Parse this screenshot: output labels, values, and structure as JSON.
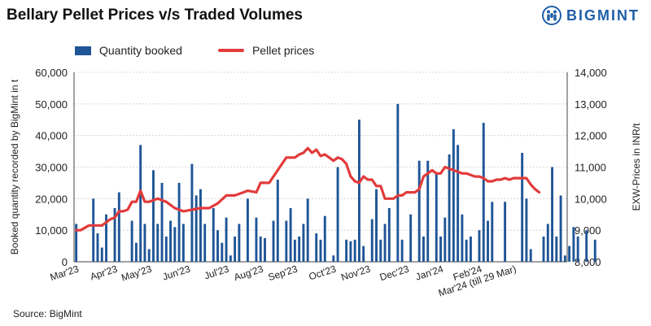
{
  "title": "Bellary Pellet Prices v/s Traded Volumes",
  "brand": {
    "name": "BIGMINT",
    "icon": "bigmint-logo-icon",
    "color": "#1f5fa8"
  },
  "source": "Source: BigMint",
  "legend": {
    "bar_label": "Quantity booked",
    "line_label": "Pellet prices"
  },
  "colors": {
    "bar": "#1f5597",
    "line": "#e23b3b",
    "grid": "#cfcfcf"
  },
  "chart_data": {
    "type": "bar",
    "combo": "bar+line (dual axis)",
    "title": "Bellary Pellet Prices v/s Traded Volumes",
    "ylabel": "Booked quantity recorded by BigMint in t",
    "ylabel_right": "EXW-Prices in INR/t",
    "ylim": [
      0,
      60000
    ],
    "ylim_right": [
      8000,
      14000
    ],
    "yticks": [
      "0",
      "10,000",
      "20,000",
      "30,000",
      "40,000",
      "50,000",
      "60,000"
    ],
    "yticks_right": [
      "8,000",
      "9,000",
      "10,000",
      "11,000",
      "12,000",
      "13,000",
      "14,000"
    ],
    "grid": true,
    "legend_position": "top-left",
    "month_labels": [
      "Mar'23",
      "Apr'23",
      "May'23",
      "Jun'23",
      "Jul'23",
      "Aug'23",
      "Sep'23",
      "Oct'23",
      "Nov'23",
      "Dec'23",
      "Jan'24",
      "Feb'24",
      "Mar'24 (till 29 Mar)"
    ],
    "month_label_positions": [
      0,
      9,
      17,
      26,
      35,
      43,
      51,
      60,
      68,
      77,
      85,
      94,
      102
    ],
    "series": [
      {
        "name": "Quantity booked",
        "kind": "bar",
        "axis": "left",
        "values": [
          12000,
          0,
          0,
          0,
          20000,
          9000,
          4500,
          15000,
          0,
          17000,
          22000,
          0,
          0,
          13000,
          6000,
          37000,
          12000,
          4000,
          29000,
          12000,
          25000,
          8000,
          13000,
          11000,
          25000,
          12000,
          0,
          31000,
          21000,
          23000,
          12000,
          0,
          17000,
          10000,
          6000,
          14000,
          2000,
          8000,
          12000,
          0,
          20000,
          0,
          14000,
          8000,
          7500,
          0,
          13000,
          26000,
          0,
          13000,
          17000,
          7000,
          8000,
          12000,
          20000,
          0,
          9000,
          7000,
          14500,
          0,
          2000,
          30000,
          0,
          7000,
          6500,
          7000,
          45000,
          5000,
          0,
          13500,
          23000,
          7000,
          12000,
          17000,
          0,
          50000,
          7000,
          0,
          15000,
          0,
          32000,
          8000,
          32000,
          0,
          28000,
          8000,
          14000,
          34000,
          42000,
          37000,
          15000,
          7000,
          8000,
          0,
          10000,
          44000,
          13000,
          19000,
          0,
          0,
          19000,
          0,
          0,
          0,
          34500,
          20000,
          4000,
          0,
          0,
          8000,
          12000,
          30000,
          8000,
          21000,
          2000,
          5000,
          11000,
          8000,
          0,
          10000,
          0,
          7000
        ],
        "total_slots": 115
      },
      {
        "name": "Pellet prices",
        "kind": "line",
        "axis": "right",
        "points": [
          [
            0,
            9000
          ],
          [
            1,
            9000
          ],
          [
            3,
            9150
          ],
          [
            6,
            9150
          ],
          [
            8,
            9350
          ],
          [
            9,
            9400
          ],
          [
            10,
            9600
          ],
          [
            11,
            9600
          ],
          [
            12,
            9650
          ],
          [
            13,
            9900
          ],
          [
            14,
            9900
          ],
          [
            15,
            10250
          ],
          [
            16,
            9900
          ],
          [
            17,
            9900
          ],
          [
            19,
            10000
          ],
          [
            21,
            9900
          ],
          [
            23,
            9700
          ],
          [
            25,
            9600
          ],
          [
            27,
            9650
          ],
          [
            29,
            9700
          ],
          [
            31,
            9700
          ],
          [
            33,
            9850
          ],
          [
            35,
            10100
          ],
          [
            37,
            10100
          ],
          [
            39,
            10200
          ],
          [
            40,
            10250
          ],
          [
            42,
            10200
          ],
          [
            43,
            10500
          ],
          [
            45,
            10500
          ],
          [
            47,
            10900
          ],
          [
            49,
            11300
          ],
          [
            51,
            11300
          ],
          [
            52,
            11400
          ],
          [
            53,
            11450
          ],
          [
            54,
            11600
          ],
          [
            55,
            11450
          ],
          [
            56,
            11550
          ],
          [
            57,
            11350
          ],
          [
            58,
            11400
          ],
          [
            59,
            11300
          ],
          [
            60,
            11200
          ],
          [
            61,
            11300
          ],
          [
            62,
            11250
          ],
          [
            63,
            11100
          ],
          [
            64,
            10700
          ],
          [
            65,
            10550
          ],
          [
            66,
            10500
          ],
          [
            67,
            10700
          ],
          [
            68,
            10600
          ],
          [
            69,
            10600
          ],
          [
            70,
            10400
          ],
          [
            71,
            10400
          ],
          [
            72,
            10000
          ],
          [
            73,
            10000
          ],
          [
            74,
            10000
          ],
          [
            75,
            10100
          ],
          [
            76,
            10100
          ],
          [
            77,
            10200
          ],
          [
            78,
            10200
          ],
          [
            79,
            10200
          ],
          [
            80,
            10300
          ],
          [
            81,
            10700
          ],
          [
            82,
            10800
          ],
          [
            83,
            10900
          ],
          [
            84,
            10800
          ],
          [
            85,
            10800
          ],
          [
            86,
            11000
          ],
          [
            87,
            10950
          ],
          [
            88,
            10900
          ],
          [
            89,
            10850
          ],
          [
            90,
            10800
          ],
          [
            91,
            10800
          ],
          [
            92,
            10750
          ],
          [
            93,
            10700
          ],
          [
            94,
            10700
          ],
          [
            95,
            10650
          ],
          [
            96,
            10550
          ],
          [
            97,
            10550
          ],
          [
            98,
            10600
          ],
          [
            99,
            10600
          ],
          [
            100,
            10650
          ],
          [
            101,
            10600
          ],
          [
            102,
            10650
          ],
          [
            103,
            10650
          ],
          [
            104,
            10650
          ],
          [
            105,
            10650
          ],
          [
            106,
            10450
          ],
          [
            107,
            10300
          ],
          [
            108,
            10200
          ]
        ],
        "total_slots": 115
      }
    ]
  }
}
